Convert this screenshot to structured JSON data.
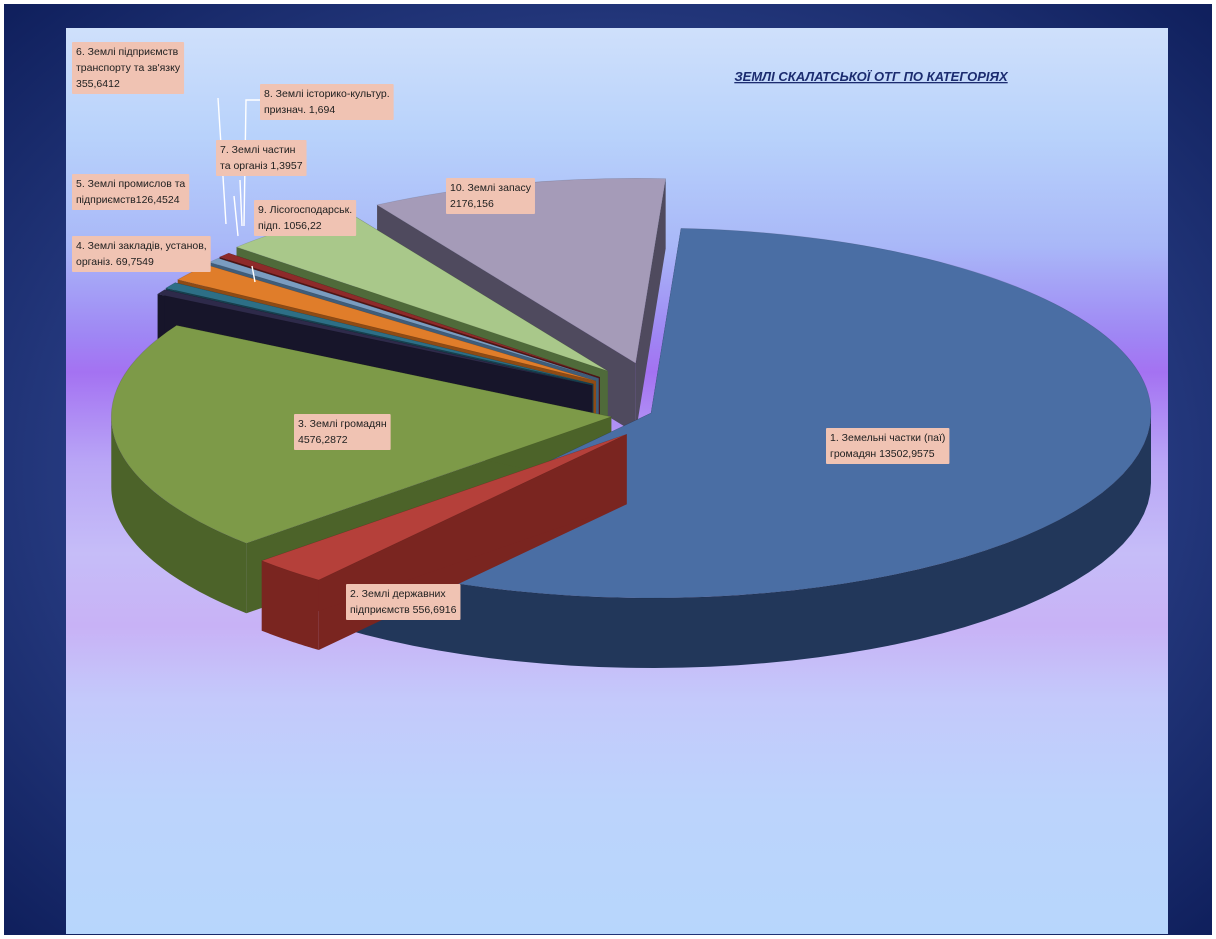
{
  "chart_data": {
    "type": "pie",
    "title": "ЗЕМЛІ СКАЛАТСЬКОЇ ОТГ  ПО КАТЕГОРІЯХ",
    "legend": "none",
    "slices": [
      {
        "id": "s1",
        "label_lines": [
          "1. Земельні частки (паї)",
          "громадян  13502,9575"
        ],
        "value": 13502.9575,
        "color": "#4a6ea4",
        "side": "#22375a",
        "explode": 0
      },
      {
        "id": "s2",
        "label_lines": [
          "2. Землі державних",
          "підприємств 556,6916"
        ],
        "value": 556.6916,
        "color": "#b5403a",
        "side": "#7a2520",
        "explode": 0.18
      },
      {
        "id": "s3",
        "label_lines": [
          "3. Землі громадян",
          "4576,2872"
        ],
        "value": 4576.2872,
        "color": "#7d9a48",
        "side": "#4c6329",
        "explode": 0.2
      },
      {
        "id": "s4",
        "label_lines": [
          "4. Землі закладів, установ,",
          "організ.  69,7549"
        ],
        "value": 69.7549,
        "color": "#2e2a4a",
        "side": "#17152a",
        "explode": 0.34
      },
      {
        "id": "s5",
        "label_lines": [
          "5. Землі промислов та",
          "підприємств126,4524"
        ],
        "value": 126.4524,
        "color": "#2d6f86",
        "side": "#17404f",
        "explode": 0.34
      },
      {
        "id": "s6",
        "label_lines": [
          "6. Землі підприємств",
          "транспорту та зв'язку",
          "355,6412"
        ],
        "value": 355.6412,
        "color": "#e07d2a",
        "side": "#8e4b15",
        "explode": 0.34
      },
      {
        "id": "s7",
        "label_lines": [
          "7. Землі частин",
          "та організ  1,3957"
        ],
        "value": 1.3957,
        "color": "#7a9cc0",
        "side": "#3f5d7a",
        "explode": 0.34
      },
      {
        "id": "s8",
        "label_lines": [
          "8. Землі  історико-культур.",
          "признач.  1,694"
        ],
        "value": 1.694,
        "color": "#8e2a2a",
        "side": "#4f1515",
        "explode": 0.34
      },
      {
        "id": "s9",
        "label_lines": [
          "9. Лісогосподарськ.",
          "підп.  1056,22"
        ],
        "value": 1056.22,
        "color": "#a9c88a",
        "side": "#4f6a3a",
        "explode": 0.34
      },
      {
        "id": "s10",
        "label_lines": [
          "10. Землі запасу",
          "2176,156"
        ],
        "value": 2176.156,
        "color": "#a59bb8",
        "side": "#4f4a5e",
        "explode": 0.32
      }
    ]
  }
}
